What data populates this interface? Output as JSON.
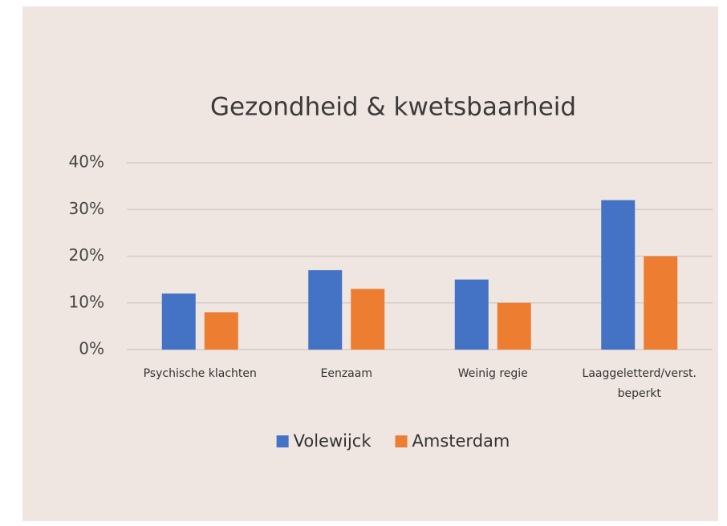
{
  "chart_data": {
    "type": "bar",
    "title": "Gezondheid & kwetsbaarheid",
    "categories": [
      "Psychische klachten",
      "Eenzaam",
      "Weinig regie",
      "Laaggeletterd/verst. beperkt"
    ],
    "series": [
      {
        "name": "Volewijck",
        "color": "#4472c4",
        "values": [
          12,
          17,
          15,
          32
        ]
      },
      {
        "name": "Amsterdam",
        "color": "#ed7d31",
        "values": [
          8,
          13,
          10,
          20
        ]
      }
    ],
    "ylim": [
      0,
      40
    ],
    "yticks": [
      {
        "value": 0,
        "label": "0%"
      },
      {
        "value": 10,
        "label": "10%"
      },
      {
        "value": 20,
        "label": "20%"
      },
      {
        "value": 30,
        "label": "30%"
      },
      {
        "value": 40,
        "label": "40%"
      }
    ],
    "grid": true,
    "legend": "bottom"
  }
}
